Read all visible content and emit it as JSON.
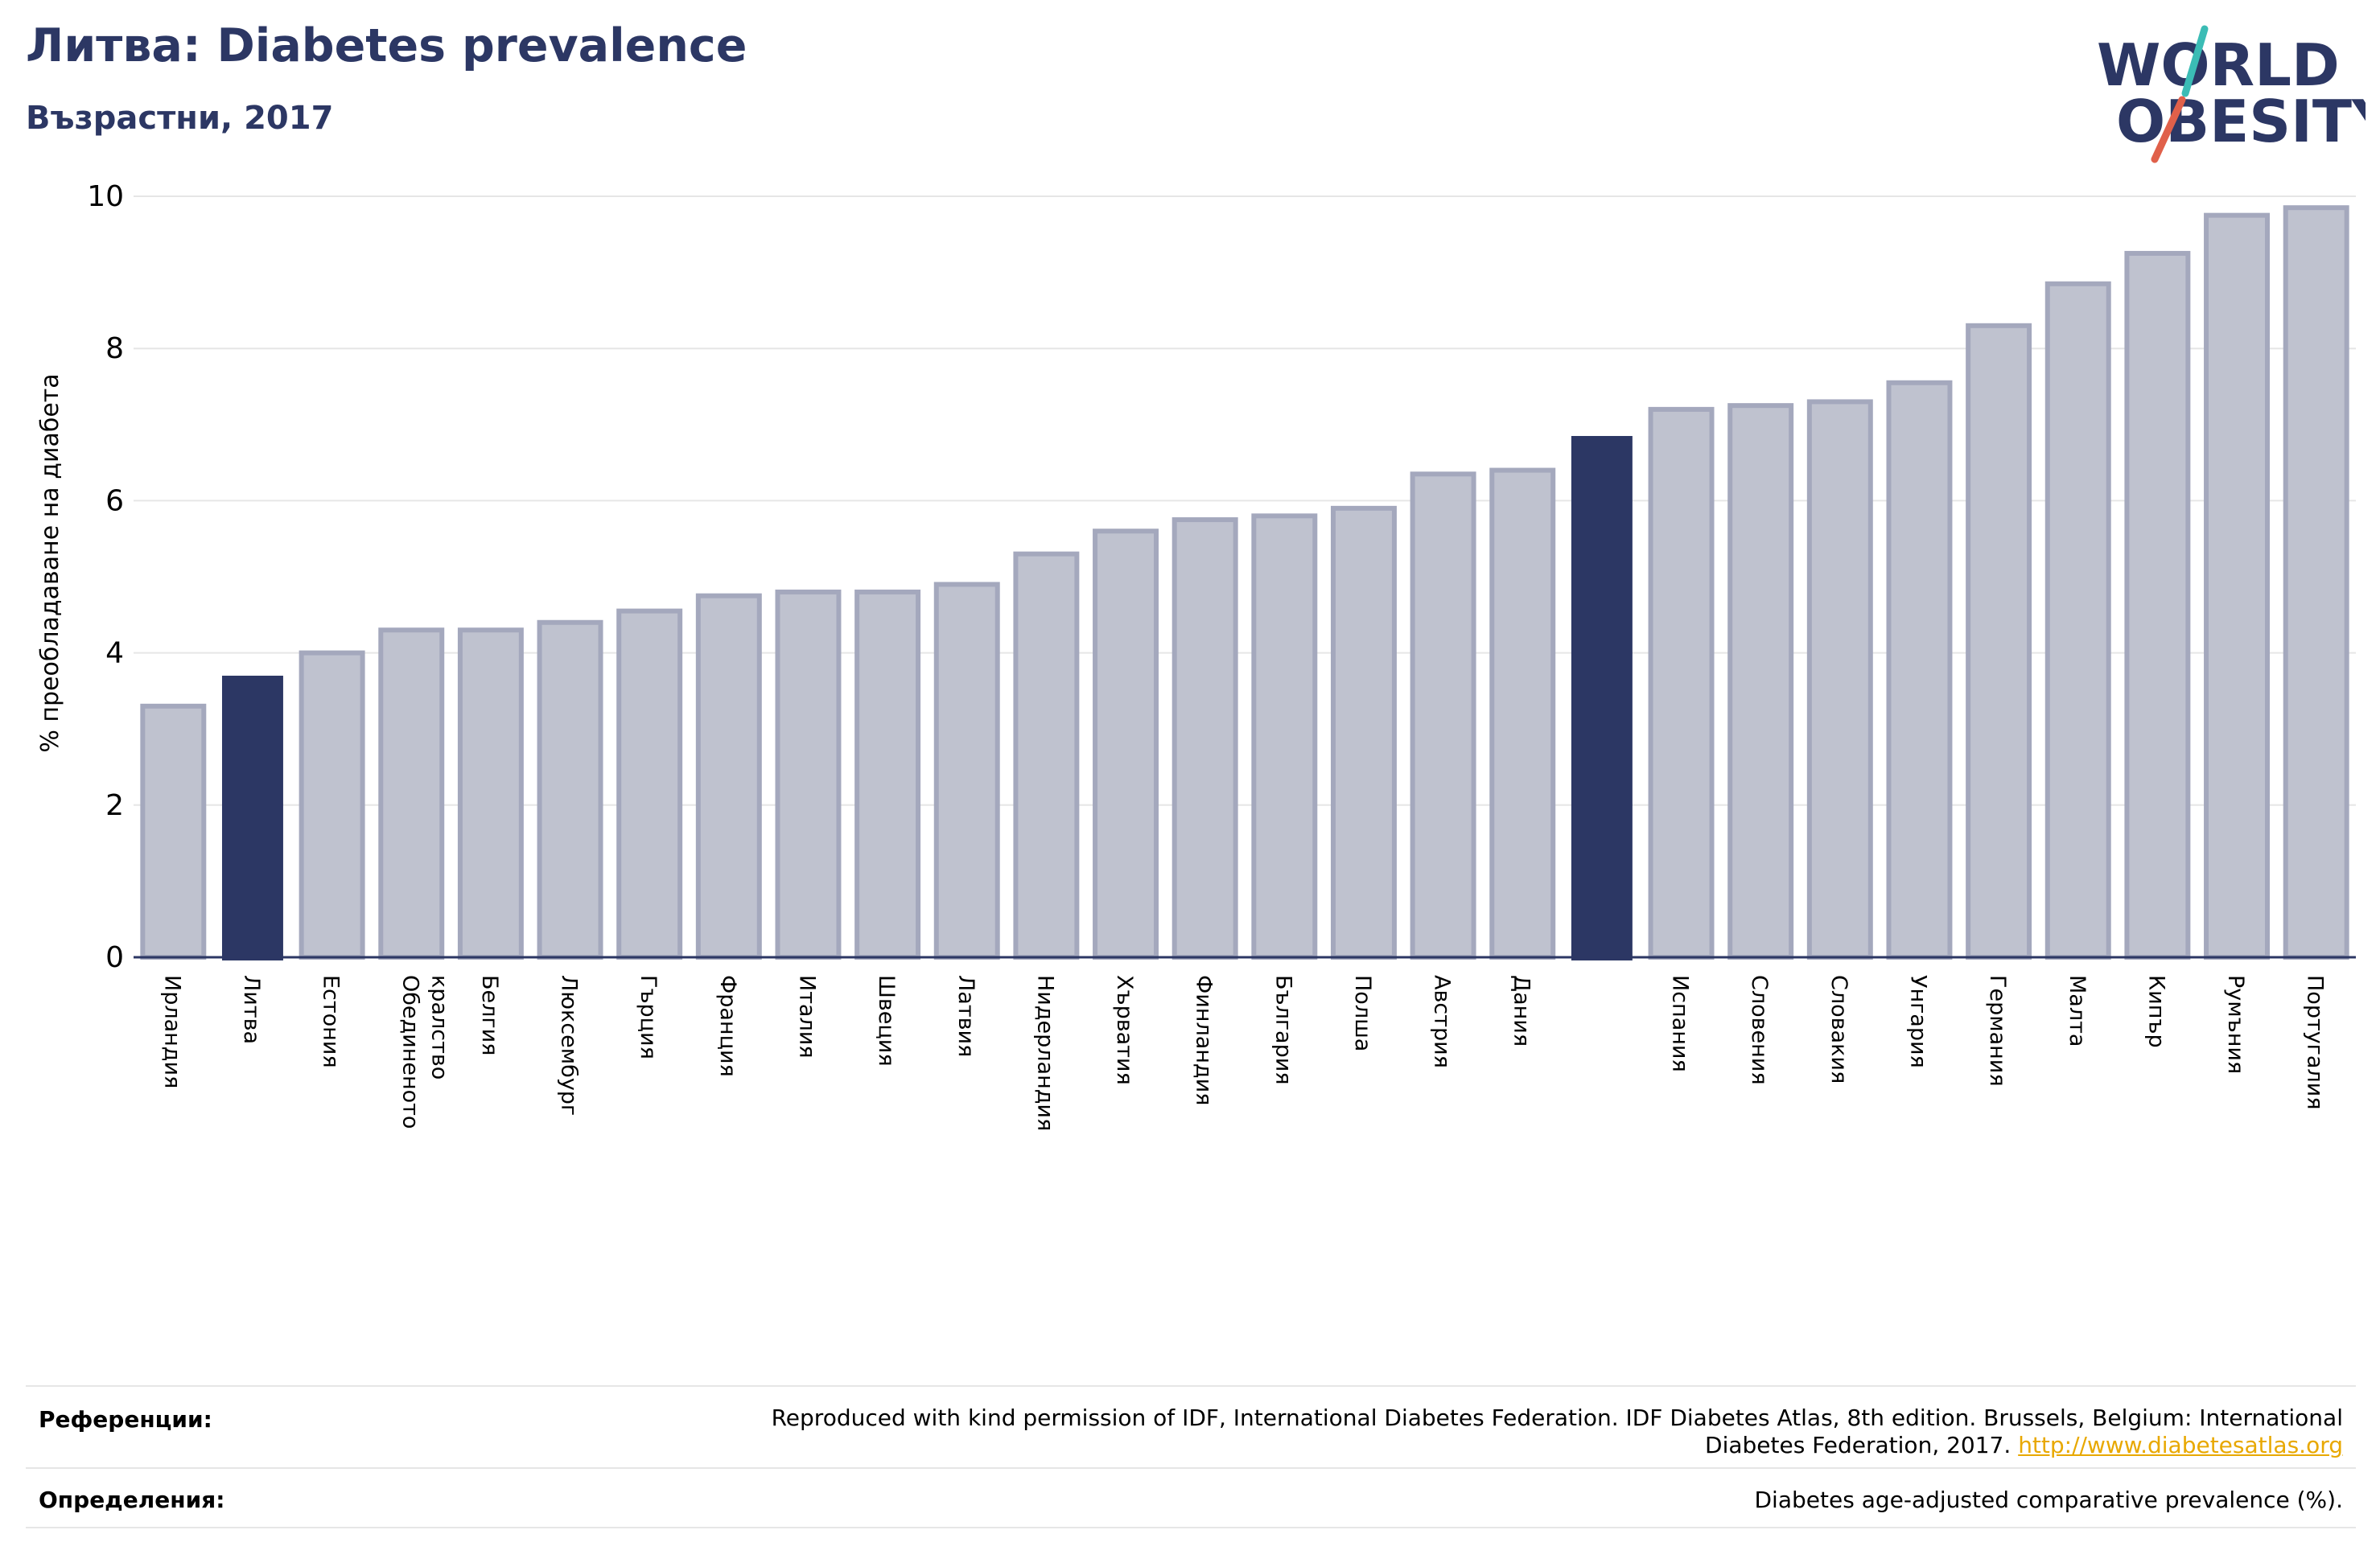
{
  "header": {
    "title": "Литва: Diabetes prevalence",
    "subtitle": "Възрастни, 2017"
  },
  "logo": {
    "line1": "WORLD",
    "line2": "OBESITY"
  },
  "chart_data": {
    "type": "bar",
    "ylabel": "% преобладаване на диабета",
    "ylim": [
      0,
      10
    ],
    "yticks": [
      0,
      2,
      4,
      6,
      8,
      10
    ],
    "grid": true,
    "colors": {
      "default": "#bfc2cf",
      "default_edge": "#a4a8bd",
      "highlight": "#2c3764"
    },
    "categories": [
      "Ирландия",
      "Литва",
      "Естония",
      "Обединеното кралство",
      "Белгия",
      "Люксембург",
      "Гърция",
      "Франция",
      "Италия",
      "Швеция",
      "Латвия",
      "Нидерландия",
      "Хърватия",
      "Финландия",
      "България",
      "Полша",
      "Австрия",
      "Дания",
      "",
      "Испания",
      "Словения",
      "Словакия",
      "Унгария",
      "Германия",
      "Малта",
      "Кипър",
      "Румъния",
      "Португалия"
    ],
    "values": [
      3.3,
      3.7,
      4.0,
      4.3,
      4.3,
      4.4,
      4.55,
      4.75,
      4.8,
      4.8,
      4.9,
      5.3,
      5.6,
      5.75,
      5.8,
      5.9,
      6.35,
      6.4,
      6.85,
      7.2,
      7.25,
      7.3,
      7.55,
      8.3,
      8.85,
      9.25,
      9.75,
      9.85
    ],
    "highlight": [
      "Литва",
      ""
    ]
  },
  "footer": {
    "references_label": "Референции:",
    "references_line1": "Reproduced with kind permission of IDF, International Diabetes Federation. IDF Diabetes Atlas, 8th edition. Brussels, Belgium: International",
    "references_line2": "Diabetes Federation, 2017.",
    "references_link": "http://www.diabetesatlas.org",
    "definitions_label": "Определения:",
    "definitions_text": "Diabetes age-adjusted comparative prevalence (%)."
  }
}
